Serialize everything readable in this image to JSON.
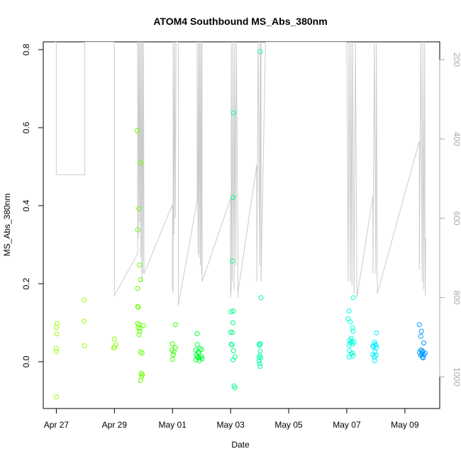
{
  "chart_data": {
    "type": "scatter",
    "title": "ATOM4 Southbound MS_Abs_380nm",
    "xlabel": "Date",
    "ylabel": "MS_Abs_380nm",
    "x_ticks": [
      "Apr 27",
      "Apr 29",
      "May 01",
      "May 03",
      "May 05",
      "May 07",
      "May 09"
    ],
    "x_tick_days": [
      0,
      2,
      4,
      6,
      8,
      10,
      12
    ],
    "y_ticks": [
      0.0,
      0.2,
      0.4,
      0.6,
      0.8
    ],
    "y_tick_labels": [
      "0.0",
      "0.2",
      "0.4",
      "0.6",
      "0.8"
    ],
    "ylim": [
      -0.12,
      0.82
    ],
    "xlim_days": [
      -0.45,
      13.2
    ],
    "secondary_axis": {
      "side": "right",
      "direction": "inverted",
      "ticks": [
        200,
        400,
        600,
        800,
        1000
      ],
      "range": [
        155,
        1080
      ],
      "color": "#aaaaaa"
    },
    "grid": false,
    "legend": "none",
    "point_series": [
      {
        "color": "#99ff00",
        "points": [
          [
            0.02,
            0.098
          ],
          [
            0.0,
            0.088
          ],
          [
            0.01,
            0.071
          ],
          [
            0.0,
            0.034
          ],
          [
            0.0,
            0.026
          ],
          [
            0.0,
            -0.09
          ],
          [
            0.96,
            0.158
          ],
          [
            0.96,
            0.104
          ],
          [
            0.97,
            0.041
          ]
        ]
      },
      {
        "color": "#88ff00",
        "points": [
          [
            2.0,
            0.058
          ],
          [
            2.05,
            0.044
          ],
          [
            1.98,
            0.036
          ],
          [
            2.0,
            0.036
          ]
        ]
      },
      {
        "color": "#66ff00",
        "points": [
          [
            2.78,
            0.592
          ],
          [
            2.9,
            0.51
          ],
          [
            2.84,
            0.392
          ],
          [
            2.8,
            0.338
          ],
          [
            2.86,
            0.248
          ],
          [
            2.9,
            0.21
          ],
          [
            2.8,
            0.188
          ],
          [
            2.8,
            0.141
          ],
          [
            2.82,
            0.14
          ],
          [
            2.8,
            0.098
          ],
          [
            2.85,
            0.095
          ],
          [
            2.82,
            0.087
          ],
          [
            2.88,
            0.085
          ],
          [
            2.87,
            0.078
          ],
          [
            2.85,
            0.069
          ],
          [
            3.0,
            0.093
          ],
          [
            2.9,
            0.025
          ],
          [
            2.95,
            0.022
          ],
          [
            2.92,
            -0.03
          ],
          [
            2.96,
            -0.033
          ],
          [
            2.94,
            -0.038
          ],
          [
            2.9,
            -0.048
          ]
        ]
      },
      {
        "color": "#33ff00",
        "points": [
          [
            4.1,
            0.095
          ],
          [
            4.0,
            0.046
          ],
          [
            4.1,
            0.036
          ],
          [
            3.98,
            0.03
          ],
          [
            4.05,
            0.026
          ],
          [
            4.02,
            0.018
          ],
          [
            4.0,
            0.006
          ]
        ]
      },
      {
        "color": "#00ff33",
        "points": [
          [
            4.85,
            0.072
          ],
          [
            4.85,
            0.044
          ],
          [
            4.95,
            0.034
          ],
          [
            4.8,
            0.03
          ],
          [
            5.0,
            0.031
          ],
          [
            4.88,
            0.025
          ],
          [
            4.9,
            0.022
          ],
          [
            4.82,
            0.018
          ],
          [
            4.85,
            0.012
          ],
          [
            5.0,
            0.014
          ],
          [
            4.95,
            0.01
          ],
          [
            4.9,
            0.01
          ],
          [
            5.02,
            0.008
          ],
          [
            4.8,
            0.005
          ],
          [
            4.92,
            0.003
          ]
        ]
      },
      {
        "color": "#00ff88",
        "points": [
          [
            6.1,
            0.638
          ],
          [
            6.08,
            0.421
          ],
          [
            6.06,
            0.258
          ],
          [
            6.02,
            0.128
          ],
          [
            6.1,
            0.13
          ],
          [
            6.08,
            0.1
          ],
          [
            6.0,
            0.076
          ],
          [
            6.06,
            0.075
          ],
          [
            6.02,
            0.045
          ],
          [
            6.05,
            0.043
          ],
          [
            6.1,
            0.028
          ],
          [
            6.15,
            0.012
          ],
          [
            6.08,
            0.005
          ],
          [
            6.12,
            -0.062
          ],
          [
            6.15,
            -0.067
          ]
        ]
      },
      {
        "color": "#00ffaa",
        "points": [
          [
            7.02,
            0.795
          ],
          [
            7.05,
            0.164
          ],
          [
            6.98,
            0.045
          ],
          [
            7.02,
            0.046
          ],
          [
            7.0,
            0.042
          ],
          [
            7.02,
            0.027
          ],
          [
            7.0,
            0.015
          ],
          [
            6.98,
            0.011
          ],
          [
            7.04,
            0.01
          ],
          [
            6.98,
            0.002
          ],
          [
            7.0,
            -0.005
          ],
          [
            7.02,
            -0.012
          ]
        ]
      },
      {
        "color": "#00ffdd",
        "points": [
          [
            10.22,
            0.164
          ],
          [
            10.08,
            0.13
          ],
          [
            10.12,
            0.102
          ],
          [
            10.05,
            0.11
          ],
          [
            10.2,
            0.087
          ],
          [
            10.22,
            0.078
          ],
          [
            10.15,
            0.06
          ],
          [
            10.1,
            0.055
          ],
          [
            10.12,
            0.048
          ],
          [
            10.18,
            0.052
          ],
          [
            10.2,
            0.045
          ],
          [
            10.08,
            0.042
          ],
          [
            10.25,
            0.05
          ],
          [
            10.1,
            0.028
          ],
          [
            10.2,
            0.022
          ],
          [
            10.15,
            0.02
          ],
          [
            10.22,
            0.015
          ],
          [
            10.08,
            0.012
          ]
        ]
      },
      {
        "color": "#00eeff",
        "points": [
          [
            11.02,
            0.074
          ],
          [
            10.95,
            0.05
          ],
          [
            10.98,
            0.045
          ],
          [
            11.0,
            0.042
          ],
          [
            10.9,
            0.04
          ],
          [
            10.93,
            0.038
          ],
          [
            11.02,
            0.036
          ],
          [
            10.97,
            0.025
          ],
          [
            10.9,
            0.018
          ],
          [
            11.0,
            0.017
          ],
          [
            10.95,
            0.012
          ],
          [
            10.96,
            0.003
          ]
        ]
      },
      {
        "color": "#0099ff",
        "points": [
          [
            12.5,
            0.095
          ],
          [
            12.57,
            0.078
          ],
          [
            12.55,
            0.065
          ],
          [
            12.65,
            0.048
          ],
          [
            12.55,
            0.03
          ],
          [
            12.6,
            0.028
          ],
          [
            12.62,
            0.025
          ],
          [
            12.5,
            0.024
          ],
          [
            12.7,
            0.022
          ],
          [
            12.58,
            0.02
          ],
          [
            12.65,
            0.018
          ],
          [
            12.55,
            0.016
          ],
          [
            12.6,
            0.012
          ],
          [
            12.63,
            0.01
          ]
        ]
      }
    ],
    "line_series": [
      {
        "color": "#cccccc",
        "points": [
          [
            -0.05,
            155
          ],
          [
            0.0,
            155
          ],
          [
            0.0,
            490
          ],
          [
            0.98,
            490
          ],
          [
            0.98,
            155
          ],
          [
            2.0,
            155
          ],
          [
            2.0,
            795
          ],
          [
            2.8,
            690
          ],
          [
            2.8,
            155
          ],
          [
            2.82,
            650
          ],
          [
            2.84,
            155
          ],
          [
            2.86,
            610
          ],
          [
            2.88,
            155
          ],
          [
            2.9,
            700
          ],
          [
            2.92,
            155
          ],
          [
            2.94,
            760
          ],
          [
            2.96,
            155
          ],
          [
            2.98,
            740
          ],
          [
            3.0,
            155
          ],
          [
            3.02,
            720
          ],
          [
            3.02,
            740
          ],
          [
            4.0,
            565
          ],
          [
            4.0,
            770
          ],
          [
            4.02,
            790
          ],
          [
            4.02,
            155
          ],
          [
            4.05,
            640
          ],
          [
            4.07,
            155
          ],
          [
            4.1,
            600
          ],
          [
            4.12,
            155
          ],
          [
            4.2,
            155
          ],
          [
            4.2,
            820
          ],
          [
            4.85,
            555
          ],
          [
            4.85,
            155
          ],
          [
            4.88,
            690
          ],
          [
            4.9,
            155
          ],
          [
            4.92,
            700
          ],
          [
            4.94,
            155
          ],
          [
            4.96,
            720
          ],
          [
            4.98,
            155
          ],
          [
            5.0,
            740
          ],
          [
            5.02,
            155
          ],
          [
            5.02,
            760
          ],
          [
            6.0,
            550
          ],
          [
            6.0,
            800
          ],
          [
            6.02,
            780
          ],
          [
            6.02,
            155
          ],
          [
            6.06,
            760
          ],
          [
            6.08,
            155
          ],
          [
            6.12,
            780
          ],
          [
            6.14,
            155
          ],
          [
            6.18,
            720
          ],
          [
            6.2,
            155
          ],
          [
            6.25,
            680
          ],
          [
            6.25,
            800
          ],
          [
            6.25,
            790
          ],
          [
            6.9,
            465
          ],
          [
            6.9,
            760
          ],
          [
            6.95,
            155
          ],
          [
            7.0,
            720
          ],
          [
            7.02,
            155
          ],
          [
            7.05,
            740
          ],
          [
            7.05,
            155
          ],
          [
            7.05,
            760
          ],
          [
            7.2,
            155
          ],
          [
            8.0,
            155
          ],
          [
            10.0,
            155
          ],
          [
            10.05,
            760
          ],
          [
            10.08,
            155
          ],
          [
            10.12,
            760
          ],
          [
            10.14,
            155
          ],
          [
            10.18,
            770
          ],
          [
            10.2,
            155
          ],
          [
            10.25,
            790
          ],
          [
            10.3,
            155
          ],
          [
            10.35,
            800
          ],
          [
            10.9,
            545
          ],
          [
            10.9,
            740
          ],
          [
            10.95,
            155
          ],
          [
            11.0,
            740
          ],
          [
            11.02,
            155
          ],
          [
            11.05,
            790
          ],
          [
            11.05,
            790
          ],
          [
            12.5,
            405
          ],
          [
            12.5,
            730
          ],
          [
            12.55,
            155
          ],
          [
            12.6,
            760
          ],
          [
            12.62,
            155
          ],
          [
            12.65,
            780
          ],
          [
            12.68,
            155
          ],
          [
            12.7,
            795
          ],
          [
            12.72,
            650
          ]
        ]
      }
    ]
  }
}
